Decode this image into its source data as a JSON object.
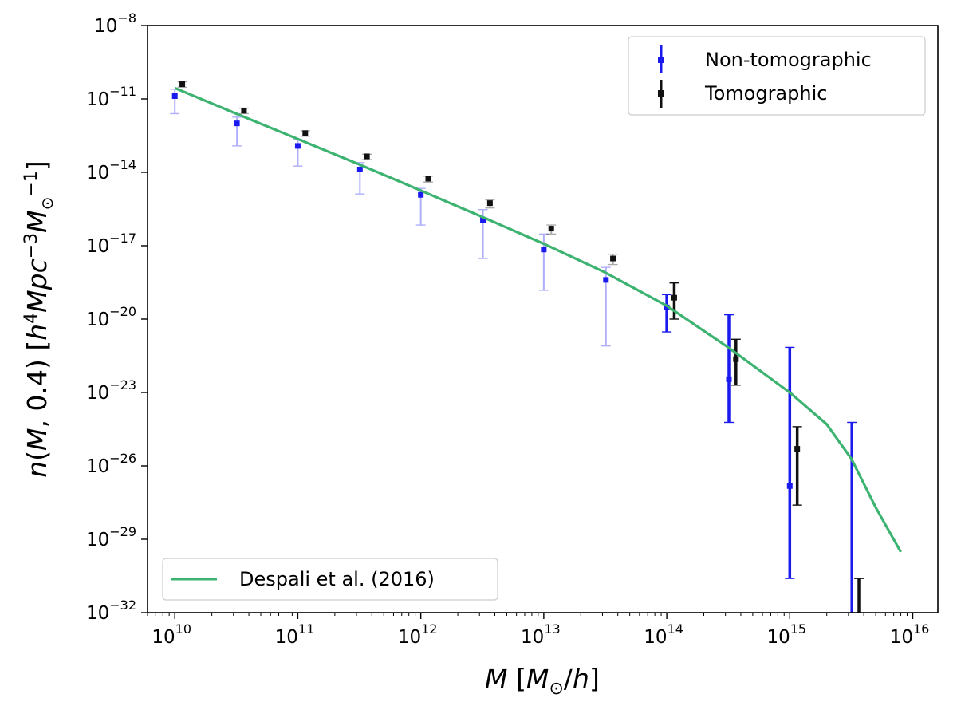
{
  "chart_data": {
    "type": "scatter",
    "x_scale": "log",
    "y_scale": "log",
    "xlim": [
      6000000000.0,
      1.6e+16
    ],
    "ylim": [
      1e-32,
      1e-08
    ],
    "xlabel": "M [M⊙/h]",
    "ylabel": "n(M, 0.4) [h⁴Mpc⁻³M⊙⁻¹]",
    "x_ticks": [
      {
        "base": "10",
        "exp": "10"
      },
      {
        "base": "10",
        "exp": "11"
      },
      {
        "base": "10",
        "exp": "12"
      },
      {
        "base": "10",
        "exp": "13"
      },
      {
        "base": "10",
        "exp": "14"
      },
      {
        "base": "10",
        "exp": "15"
      },
      {
        "base": "10",
        "exp": "16"
      }
    ],
    "y_ticks": [
      {
        "base": "10",
        "exp": "−32"
      },
      {
        "base": "10",
        "exp": "−29"
      },
      {
        "base": "10",
        "exp": "−26"
      },
      {
        "base": "10",
        "exp": "−23"
      },
      {
        "base": "10",
        "exp": "−20"
      },
      {
        "base": "10",
        "exp": "−17"
      },
      {
        "base": "10",
        "exp": "−14"
      },
      {
        "base": "10",
        "exp": "−11"
      },
      {
        "base": "10",
        "exp": "−8"
      }
    ],
    "series": [
      {
        "name": "Non-tomographic",
        "color": "#1a1aee",
        "points": [
          {
            "x": 10000000000.0,
            "y": 1.3e-11,
            "ylo": 2.5e-12,
            "yhi": 2.5e-11,
            "faint": true
          },
          {
            "x": 32000000000.0,
            "y": 1e-12,
            "ylo": 1.2e-13,
            "yhi": 1.8e-12,
            "faint": true
          },
          {
            "x": 100000000000.0,
            "y": 1.2e-13,
            "ylo": 1.8e-14,
            "yhi": 2.2e-13,
            "faint": true
          },
          {
            "x": 320000000000.0,
            "y": 1.3e-14,
            "ylo": 1.3e-15,
            "yhi": 2.5e-14,
            "faint": true
          },
          {
            "x": 1000000000000.0,
            "y": 1.2e-15,
            "ylo": 7e-17,
            "yhi": 2.2e-15,
            "faint": true
          },
          {
            "x": 3200000000000.0,
            "y": 1.1e-16,
            "ylo": 3e-18,
            "yhi": 3e-16,
            "faint": true
          },
          {
            "x": 10000000000000.0,
            "y": 7e-18,
            "ylo": 1.5e-19,
            "yhi": 3e-17,
            "faint": true
          },
          {
            "x": 32000000000000.0,
            "y": 4e-19,
            "ylo": 8e-22,
            "yhi": 1.3e-18,
            "faint": true
          },
          {
            "x": 100000000000000.0,
            "y": 3e-20,
            "ylo": 3e-21,
            "yhi": 1e-19,
            "faint": false
          },
          {
            "x": 320000000000000.0,
            "y": 3.5e-23,
            "ylo": 6e-25,
            "yhi": 1.5e-20,
            "faint": false
          },
          {
            "x": 1000000000000000.0,
            "y": 1.5e-27,
            "ylo": 2.5e-31,
            "yhi": 7e-22,
            "faint": false
          },
          {
            "x": 3200000000000000.0,
            "y": 1e-32,
            "ylo": 1e-32,
            "yhi": 6e-25,
            "faint": false
          }
        ]
      },
      {
        "name": "Tomographic",
        "color": "#111111",
        "points": [
          {
            "x": 11500000000.0,
            "y": 4e-11,
            "ylo": 3e-11,
            "yhi": 5e-11,
            "faint": true
          },
          {
            "x": 36500000000.0,
            "y": 3.3e-12,
            "ylo": 2.5e-12,
            "yhi": 4.2e-12,
            "faint": true
          },
          {
            "x": 115000000000.0,
            "y": 4e-13,
            "ylo": 3e-13,
            "yhi": 5e-13,
            "faint": true
          },
          {
            "x": 365000000000.0,
            "y": 4.5e-14,
            "ylo": 3.3e-14,
            "yhi": 5.5e-14,
            "faint": true
          },
          {
            "x": 1150000000000.0,
            "y": 5.5e-15,
            "ylo": 4e-15,
            "yhi": 7e-15,
            "faint": true
          },
          {
            "x": 3650000000000.0,
            "y": 5.5e-16,
            "ylo": 3.5e-16,
            "yhi": 7.5e-16,
            "faint": true
          },
          {
            "x": 11500000000000.0,
            "y": 5e-17,
            "ylo": 3e-17,
            "yhi": 7e-17,
            "faint": true
          },
          {
            "x": 36500000000000.0,
            "y": 3e-18,
            "ylo": 1.7e-18,
            "yhi": 4.5e-18,
            "faint": true
          },
          {
            "x": 115000000000000.0,
            "y": 7.5e-20,
            "ylo": 1e-20,
            "yhi": 3e-19,
            "faint": false
          },
          {
            "x": 365000000000000.0,
            "y": 2.3e-22,
            "ylo": 2e-23,
            "yhi": 1.5e-21,
            "faint": false
          },
          {
            "x": 1150000000000000.0,
            "y": 5e-26,
            "ylo": 2.5e-28,
            "yhi": 4e-25,
            "faint": false
          },
          {
            "x": 3650000000000000.0,
            "y": 1e-32,
            "ylo": 1e-32,
            "yhi": 2.5e-31,
            "faint": false
          }
        ]
      }
    ],
    "model_curve": {
      "name": "Despali et al. (2016)",
      "color": "#3cb371",
      "x": [
        10000000000.0,
        31600000000.0,
        100000000000.0,
        316000000000.0,
        1000000000000.0,
        3160000000000.0,
        10000000000000.0,
        31600000000000.0,
        100000000000000.0,
        316000000000000.0,
        1000000000000000.0,
        2000000000000000.0,
        3160000000000000.0,
        5000000000000000.0,
        8000000000000000.0
      ],
      "y": [
        2.8e-11,
        2.5e-12,
        2.3e-13,
        2.1e-14,
        1.8e-15,
        1.5e-16,
        1.2e-17,
        8e-19,
        3.5e-20,
        7e-22,
        1e-23,
        5e-25,
        2e-26,
        2e-28,
        3e-30
      ]
    },
    "legends": [
      {
        "entries": [
          "Non-tomographic",
          "Tomographic"
        ],
        "placement": "top-right"
      },
      {
        "entries": [
          "Despali et al. (2016)"
        ],
        "placement": "bottom-left"
      }
    ]
  }
}
